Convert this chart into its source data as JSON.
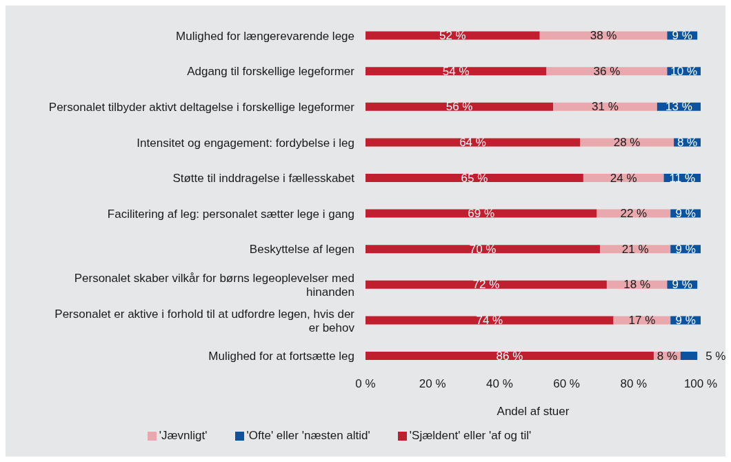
{
  "chart_data": {
    "type": "bar",
    "orientation": "horizontal",
    "stacked": true,
    "categories": [
      "Mulighed for længerevarende lege",
      "Adgang til forskellige legeformer",
      "Personalet tilbyder aktivt deltagelse i forskellige legeformer",
      "Intensitet og engagement: fordybelse i leg",
      "Støtte til inddragelse i fællesskabet",
      "Facilitering af leg: personalet sætter lege i gang",
      "Beskyttelse af legen",
      "Personalet skaber vilkår for børns legeoplevelser med hinanden",
      "Personalet er aktive i forhold til at udfordre legen, hvis der er behov",
      "Mulighed for at fortsætte leg"
    ],
    "series": [
      {
        "name": "'Sjældent' eller 'af og til'",
        "color": "#c01f30",
        "values": [
          52,
          54,
          56,
          64,
          65,
          69,
          70,
          72,
          74,
          86
        ],
        "value_labels": [
          "52 %",
          "54 %",
          "56 %",
          "64 %",
          "65 %",
          "69 %",
          "70 %",
          "72 %",
          "74 %",
          "86 %"
        ]
      },
      {
        "name": "'Jævnligt'",
        "color": "#e9a8ad",
        "values": [
          38,
          36,
          31,
          28,
          24,
          22,
          21,
          18,
          17,
          8
        ],
        "value_labels": [
          "38 %",
          "36 %",
          "31 %",
          "28 %",
          "24 %",
          "22 %",
          "21 %",
          "18 %",
          "17 %",
          "8 %"
        ]
      },
      {
        "name": "'Ofte' eller 'næsten altid'",
        "color": "#0b539e",
        "values": [
          9,
          10,
          13,
          8,
          11,
          9,
          9,
          9,
          9,
          5
        ],
        "value_labels": [
          "9 %",
          "10 %",
          "13 %",
          "8 %",
          "11 %",
          "9 %",
          "9 %",
          "9 %",
          "9 %",
          "5 %"
        ]
      }
    ],
    "xlim": [
      0,
      100
    ],
    "xticks": [
      {
        "value": 0,
        "label": "0 %"
      },
      {
        "value": 20,
        "label": "20 %"
      },
      {
        "value": 40,
        "label": "40 %"
      },
      {
        "value": 60,
        "label": "60 %"
      },
      {
        "value": 80,
        "label": "80 %"
      },
      {
        "value": 100,
        "label": "100 %"
      }
    ],
    "xlabel": "Andel af stuer",
    "legend": "bottom",
    "grid": false
  }
}
